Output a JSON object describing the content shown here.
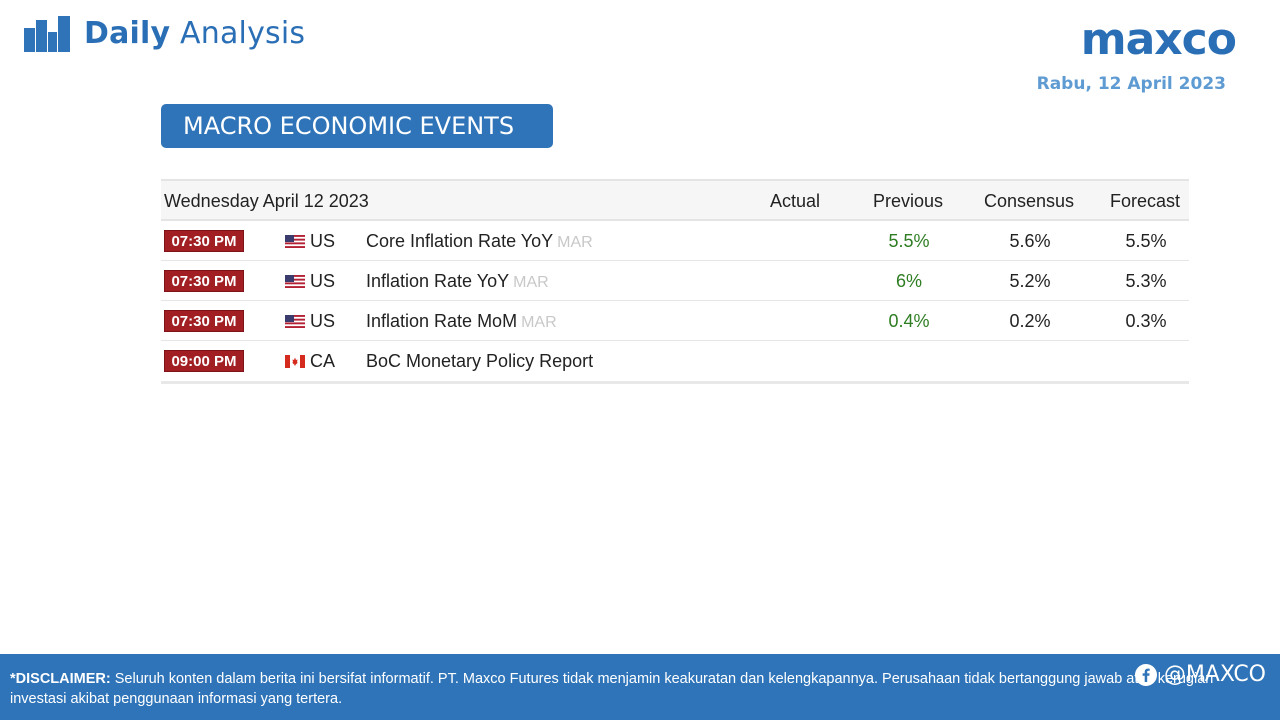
{
  "header": {
    "brand_bold": "Daily",
    "brand_light": "Analysis",
    "logo_text": "maxco",
    "date": "Rabu, 12 April 2023",
    "icon": "bar-chart-icon"
  },
  "section_title": "MACRO ECONOMIC EVENTS",
  "table": {
    "date_header": "Wednesday April 12 2023",
    "columns": [
      "Actual",
      "Previous",
      "Consensus",
      "Forecast"
    ],
    "rows": [
      {
        "time": "07:30 PM",
        "flag": "us-flag-icon",
        "country": "US",
        "event": "Core Inflation Rate YoY",
        "period": "MAR",
        "actual": "",
        "previous": "5.5%",
        "consensus": "5.6%",
        "forecast": "5.5%"
      },
      {
        "time": "07:30 PM",
        "flag": "us-flag-icon",
        "country": "US",
        "event": "Inflation Rate YoY",
        "period": "MAR",
        "actual": "",
        "previous": "6%",
        "consensus": "5.2%",
        "forecast": "5.3%"
      },
      {
        "time": "07:30 PM",
        "flag": "us-flag-icon",
        "country": "US",
        "event": "Inflation Rate MoM",
        "period": "MAR",
        "actual": "",
        "previous": "0.4%",
        "consensus": "0.2%",
        "forecast": "0.3%"
      },
      {
        "time": "09:00 PM",
        "flag": "canada-flag-icon",
        "country": "CA",
        "event": "BoC Monetary Policy Report",
        "period": "",
        "actual": "",
        "previous": "",
        "consensus": "",
        "forecast": ""
      }
    ]
  },
  "footer": {
    "disclaimer_label": "*DISCLAIMER:",
    "disclaimer_text": " Seluruh konten dalam berita ini bersifat informatif. PT. Maxco Futures tidak menjamin keakuratan dan kelengkapannya. Perusahaan tidak bertanggung jawab atas kerugian investasi akibat penggunaan informasi yang tertera.",
    "social_handle": "@MAXCO"
  },
  "colors": {
    "brand_blue": "#2f74b8",
    "time_badge": "#a11e22",
    "previous_green": "#2e7d22"
  }
}
